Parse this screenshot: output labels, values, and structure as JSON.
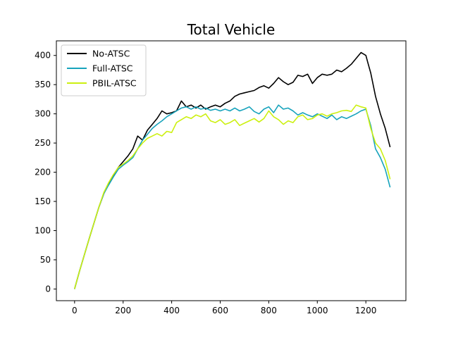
{
  "chart_data": {
    "type": "line",
    "title": "Total Vehicle",
    "xlabel": "",
    "ylabel": "",
    "xlim": [
      -75,
      1365
    ],
    "ylim": [
      -20,
      425
    ],
    "xticks": [
      0,
      200,
      400,
      600,
      800,
      1000,
      1200
    ],
    "yticks": [
      0,
      50,
      100,
      150,
      200,
      250,
      300,
      350,
      400
    ],
    "grid": false,
    "legend": "top-left",
    "series": [
      {
        "name": "No-ATSC",
        "color": "#000000",
        "x": [
          0,
          20,
          40,
          60,
          80,
          100,
          120,
          140,
          160,
          180,
          200,
          220,
          240,
          260,
          280,
          300,
          320,
          340,
          360,
          380,
          400,
          420,
          440,
          460,
          480,
          500,
          520,
          540,
          560,
          580,
          600,
          620,
          640,
          660,
          680,
          700,
          720,
          740,
          760,
          780,
          800,
          820,
          840,
          860,
          880,
          900,
          920,
          940,
          960,
          980,
          1000,
          1020,
          1040,
          1060,
          1080,
          1100,
          1120,
          1140,
          1160,
          1180,
          1200,
          1210,
          1220,
          1240,
          1260,
          1280,
          1300
        ],
        "y": [
          0,
          30,
          58,
          86,
          113,
          140,
          163,
          180,
          195,
          208,
          218,
          228,
          240,
          262,
          255,
          272,
          282,
          292,
          305,
          300,
          302,
          305,
          322,
          312,
          315,
          310,
          315,
          308,
          312,
          315,
          312,
          318,
          322,
          330,
          334,
          336,
          338,
          340,
          345,
          348,
          344,
          352,
          362,
          355,
          350,
          354,
          366,
          364,
          368,
          352,
          362,
          368,
          366,
          368,
          375,
          372,
          378,
          385,
          395,
          405,
          400,
          385,
          370,
          330,
          300,
          275,
          243
        ]
      },
      {
        "name": "Full-ATSC",
        "color": "#17a3bc",
        "x": [
          0,
          20,
          40,
          60,
          80,
          100,
          120,
          140,
          160,
          180,
          200,
          220,
          240,
          260,
          280,
          300,
          320,
          340,
          360,
          380,
          400,
          420,
          440,
          460,
          480,
          500,
          520,
          540,
          560,
          580,
          600,
          620,
          640,
          660,
          680,
          700,
          720,
          740,
          760,
          780,
          800,
          820,
          840,
          860,
          880,
          900,
          920,
          940,
          960,
          980,
          1000,
          1020,
          1040,
          1060,
          1080,
          1100,
          1120,
          1140,
          1160,
          1180,
          1200,
          1220,
          1240,
          1260,
          1280,
          1300
        ],
        "y": [
          0,
          30,
          58,
          86,
          113,
          140,
          163,
          178,
          192,
          205,
          212,
          218,
          225,
          240,
          255,
          265,
          275,
          282,
          288,
          295,
          300,
          305,
          310,
          312,
          308,
          312,
          308,
          310,
          306,
          308,
          305,
          308,
          305,
          310,
          305,
          308,
          312,
          304,
          300,
          308,
          312,
          302,
          315,
          308,
          310,
          305,
          298,
          302,
          298,
          295,
          300,
          296,
          292,
          298,
          290,
          295,
          292,
          296,
          300,
          305,
          308,
          280,
          240,
          225,
          205,
          174
        ]
      },
      {
        "name": "PBIL-ATSC",
        "color": "#ccf010",
        "x": [
          0,
          20,
          40,
          60,
          80,
          100,
          120,
          140,
          160,
          180,
          200,
          220,
          240,
          260,
          280,
          300,
          320,
          340,
          360,
          380,
          400,
          420,
          440,
          460,
          480,
          500,
          520,
          540,
          560,
          580,
          600,
          620,
          640,
          660,
          680,
          700,
          720,
          740,
          760,
          780,
          800,
          820,
          840,
          860,
          880,
          900,
          920,
          940,
          960,
          980,
          1000,
          1020,
          1040,
          1060,
          1080,
          1100,
          1120,
          1140,
          1160,
          1180,
          1200,
          1220,
          1240,
          1260,
          1280,
          1300
        ],
        "y": [
          0,
          30,
          58,
          86,
          113,
          140,
          165,
          182,
          196,
          208,
          214,
          220,
          228,
          240,
          250,
          258,
          262,
          266,
          262,
          270,
          268,
          285,
          290,
          295,
          292,
          298,
          295,
          300,
          288,
          285,
          290,
          282,
          285,
          290,
          280,
          284,
          288,
          292,
          286,
          292,
          305,
          295,
          290,
          282,
          288,
          285,
          295,
          298,
          290,
          292,
          298,
          300,
          296,
          300,
          302,
          305,
          306,
          304,
          315,
          312,
          310,
          275,
          250,
          240,
          220,
          188
        ]
      }
    ]
  }
}
